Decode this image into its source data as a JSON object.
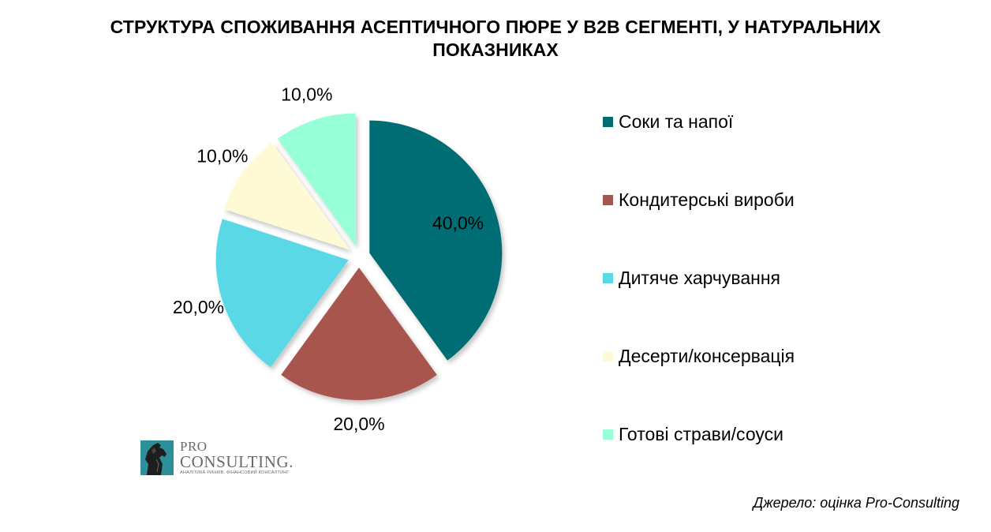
{
  "chart_data": {
    "type": "pie",
    "title": "СТРУКТУРА СПОЖИВАННЯ АСЕПТИЧНОГО ПЮРЕ У В2В СЕГМЕНТІ, У НАТУРАЛЬНИХ ПОКАЗНИКАХ",
    "categories": [
      "Соки та напої",
      "Кондитерські вироби",
      "Дитяче харчування",
      "Десерти/консервація",
      "Готові страви/соуси"
    ],
    "values": [
      40.0,
      20.0,
      20.0,
      10.0,
      10.0
    ],
    "data_labels": [
      "40,0%",
      "20,0%",
      "20,0%",
      "10,0%",
      "10,0%"
    ],
    "colors": [
      "#006d75",
      "#a8574e",
      "#5ad8e6",
      "#fffad6",
      "#96ffd8"
    ],
    "exploded": true,
    "legend_position": "right"
  },
  "title_line1": "СТРУКТУРА СПОЖИВАННЯ АСЕПТИЧНОГО ПЮРЕ У В2В СЕГМЕНТІ, У НАТУРАЛЬНИХ",
  "title_line2": "ПОКАЗНИКАХ",
  "logo": {
    "pro": "PRO",
    "consulting": "CONSULTING.",
    "tagline": "АНАЛІТИКА РИНКІВ. ФІНАНСОВИЙ КОНСАЛТИНГ"
  },
  "source": "Джерело: оцінка Pro-Consulting"
}
